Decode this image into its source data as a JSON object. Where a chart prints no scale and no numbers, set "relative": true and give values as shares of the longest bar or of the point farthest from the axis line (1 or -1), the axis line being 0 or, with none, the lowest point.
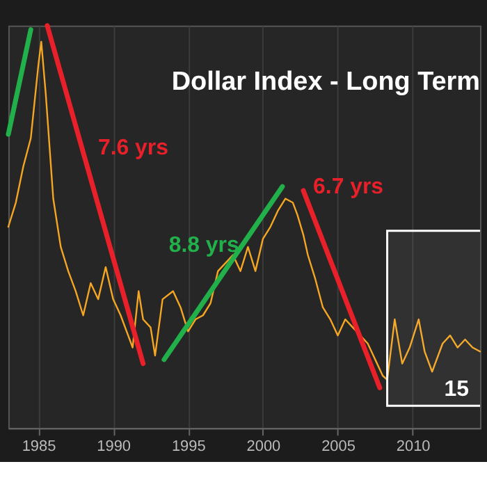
{
  "chart_data": {
    "type": "line",
    "title": "Dollar Index - Long Term",
    "relative": true,
    "xlim": [
      1983,
      2014.5
    ],
    "xticks": [
      1985,
      1990,
      1995,
      2000,
      2005,
      2010
    ],
    "grid": true,
    "marker": "none",
    "line_style": "solid",
    "series": [
      {
        "color": "#f5a623",
        "x": [
          1983.0,
          1983.5,
          1984,
          1984.5,
          1985.0,
          1985.2,
          1985.5,
          1986,
          1986.5,
          1987,
          1987.5,
          1988,
          1988.5,
          1989,
          1989.5,
          1990,
          1990.5,
          1991,
          1991.3,
          1991.7,
          1992,
          1992.5,
          1992.8,
          1993.3,
          1994,
          1994.5,
          1995,
          1995.5,
          1996,
          1996.5,
          1997,
          1997.5,
          1998,
          1998.5,
          1999,
          1999.5,
          2000,
          2000.5,
          2001,
          2001.5,
          2002,
          2002.3,
          2002.7,
          2003,
          2003.5,
          2004,
          2004.5,
          2005,
          2005.5,
          2006,
          2006.5,
          2007,
          2007.5,
          2008.0,
          2008.3,
          2008.8,
          2009.3,
          2009.8,
          2010.4,
          2010.8,
          2011.3,
          2012,
          2012.5,
          2013,
          2013.5,
          2014,
          2014.5
        ],
        "values": [
          0.5,
          0.56,
          0.65,
          0.72,
          0.9,
          0.96,
          0.83,
          0.57,
          0.45,
          0.39,
          0.34,
          0.28,
          0.36,
          0.32,
          0.4,
          0.32,
          0.28,
          0.23,
          0.2,
          0.34,
          0.27,
          0.25,
          0.18,
          0.32,
          0.34,
          0.3,
          0.24,
          0.27,
          0.28,
          0.31,
          0.39,
          0.41,
          0.43,
          0.39,
          0.45,
          0.39,
          0.47,
          0.5,
          0.54,
          0.57,
          0.56,
          0.53,
          0.48,
          0.43,
          0.37,
          0.3,
          0.27,
          0.23,
          0.27,
          0.25,
          0.23,
          0.21,
          0.17,
          0.13,
          0.12,
          0.27,
          0.16,
          0.2,
          0.27,
          0.19,
          0.14,
          0.21,
          0.23,
          0.2,
          0.22,
          0.2,
          0.19
        ]
      },
      {
        "color": "#22b04b",
        "x": [
          1983.0,
          1984.5
        ],
        "values": [
          0.73,
          0.99
        ]
      },
      {
        "color": "#e8202a",
        "x": [
          1985.6,
          1992.0
        ],
        "values": [
          1.0,
          0.16
        ]
      },
      {
        "color": "#22b04b",
        "x": [
          1993.4,
          2001.3
        ],
        "values": [
          0.17,
          0.6
        ]
      },
      {
        "color": "#e8202a",
        "x": [
          2002.7,
          2007.8
        ],
        "values": [
          0.59,
          0.1
        ]
      }
    ],
    "annotations": [
      "7.6 yrs",
      "8.8 yrs",
      "6.7 yrs",
      "15"
    ],
    "bands": [
      {
        "axis": "x",
        "from": 2008.3,
        "to": 2015,
        "color": "#ffffff"
      }
    ]
  }
}
